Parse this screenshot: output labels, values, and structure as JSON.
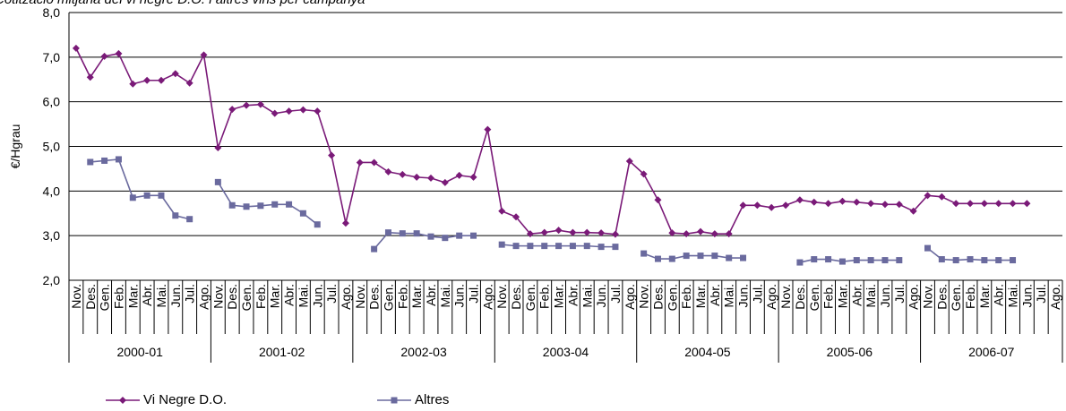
{
  "chart_data": {
    "type": "line",
    "title": "Cotització mitjana del vi negre D.O. i altres vins per campanya",
    "ylabel": "€/Hgrau",
    "ylim": [
      2.0,
      8.0
    ],
    "yticks": [
      "2,0",
      "3,0",
      "4,0",
      "5,0",
      "6,0",
      "7,0",
      "8,0"
    ],
    "grid": true,
    "legend_position": "bottom-left",
    "months": [
      "Nov.",
      "Des.",
      "Gen.",
      "Feb.",
      "Mar.",
      "Abr.",
      "Mai.",
      "Jun.",
      "Jul.",
      "Ago."
    ],
    "seasons": [
      "2000-01",
      "2001-02",
      "2002-03",
      "2003-04",
      "2004-05",
      "2005-06",
      "2006-07"
    ],
    "series": [
      {
        "name": "Vi Negre D.O.",
        "color": "#7a1a78",
        "marker": "diamond",
        "values": [
          7.2,
          6.55,
          7.02,
          7.08,
          6.4,
          6.48,
          6.48,
          6.63,
          6.42,
          7.05,
          4.97,
          5.83,
          5.92,
          5.94,
          5.74,
          5.79,
          5.82,
          5.79,
          4.8,
          3.28,
          4.64,
          4.64,
          4.43,
          4.37,
          4.31,
          4.29,
          4.19,
          4.35,
          4.31,
          5.38,
          3.55,
          3.42,
          3.04,
          3.07,
          3.12,
          3.07,
          3.07,
          3.06,
          3.03,
          4.67,
          4.38,
          3.8,
          3.06,
          3.04,
          3.09,
          3.04,
          3.04,
          3.68,
          3.68,
          3.63,
          3.68,
          3.8,
          3.75,
          3.72,
          3.77,
          3.75,
          3.72,
          3.7,
          3.7,
          3.55,
          3.9,
          3.87,
          3.72,
          3.72,
          3.72,
          3.72,
          3.72,
          3.72,
          null,
          null
        ]
      },
      {
        "name": "Altres",
        "color": "#6a6a9e",
        "marker": "square",
        "values": [
          null,
          4.65,
          4.68,
          4.71,
          3.85,
          3.9,
          3.9,
          3.45,
          3.37,
          null,
          4.2,
          3.68,
          3.65,
          3.67,
          3.7,
          3.7,
          3.5,
          3.25,
          null,
          null,
          null,
          2.7,
          3.07,
          3.05,
          3.05,
          2.98,
          2.95,
          3.0,
          3.0,
          null,
          2.8,
          2.77,
          2.77,
          2.77,
          2.77,
          2.77,
          2.77,
          2.75,
          2.75,
          null,
          2.6,
          2.48,
          2.48,
          2.55,
          2.55,
          2.55,
          2.5,
          2.5,
          null,
          null,
          null,
          2.4,
          2.47,
          2.47,
          2.42,
          2.45,
          2.45,
          2.45,
          2.45,
          null,
          2.72,
          2.47,
          2.45,
          2.47,
          2.45,
          2.45,
          2.45,
          null,
          null,
          null
        ]
      }
    ]
  }
}
